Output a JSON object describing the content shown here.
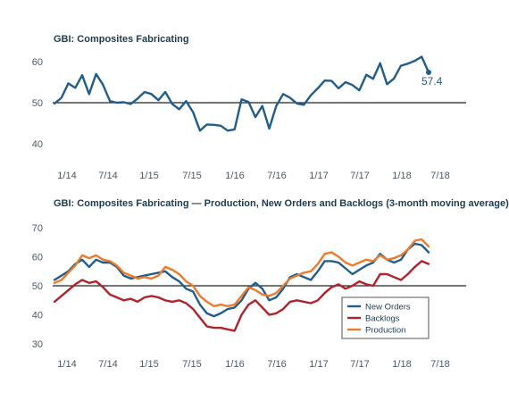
{
  "chart_data": [
    {
      "type": "line",
      "title": "GBI: Composites Fabricating",
      "ylim": [
        38,
        64
      ],
      "yticks": [
        40,
        50,
        60
      ],
      "reference_line": 50,
      "xticklabels": [
        "1/14",
        "7/14",
        "1/15",
        "7/15",
        "1/16",
        "7/16",
        "1/17",
        "7/17",
        "1/18",
        "7/18"
      ],
      "x_start": "1/14",
      "annotation": "57.4",
      "series": [
        {
          "color": "#1f5e8c",
          "values": [
            49.8,
            51.2,
            54.7,
            53.6,
            56.7,
            52.1,
            57.0,
            54.4,
            50.4,
            50.0,
            50.1,
            49.7,
            51.0,
            52.6,
            52.1,
            50.6,
            52.6,
            49.7,
            48.4,
            50.4,
            47.7,
            43.2,
            44.7,
            44.6,
            44.4,
            43.2,
            43.5,
            50.8,
            50.2,
            46.5,
            49.2,
            43.7,
            49.2,
            52.1,
            51.2,
            49.8,
            49.5,
            51.8,
            53.5,
            55.4,
            55.3,
            53.5,
            55.0,
            54.3,
            53.0,
            56.8,
            55.8,
            59.6,
            54.5,
            55.9,
            59.0,
            59.5,
            60.2,
            61.2,
            57.4
          ]
        }
      ]
    },
    {
      "type": "line",
      "title": "GBI: Composites Fabricating — Production, New Orders and Backlogs  (3-month moving average)",
      "ylim": [
        29,
        71
      ],
      "yticks": [
        30,
        40,
        50,
        60,
        70
      ],
      "reference_line": 50,
      "xticklabels": [
        "1/14",
        "7/14",
        "1/15",
        "7/15",
        "1/16",
        "7/16",
        "1/17",
        "7/17",
        "1/18",
        "7/18"
      ],
      "x_start": "1/14",
      "legend_position": "lower-right",
      "series": [
        {
          "name": "New Orders",
          "color": "#1f5e8c",
          "values": [
            52.0,
            53.5,
            55.0,
            57.5,
            59.0,
            56.5,
            59.0,
            58.0,
            58.0,
            56.5,
            53.5,
            52.5,
            53.0,
            53.5,
            54.0,
            54.5,
            55.0,
            53.0,
            51.5,
            49.0,
            48.0,
            43.5,
            40.5,
            39.5,
            40.5,
            42.0,
            42.5,
            45.0,
            49.0,
            51.0,
            49.0,
            45.0,
            46.0,
            49.0,
            53.0,
            54.0,
            53.0,
            52.0,
            55.0,
            58.5,
            58.5,
            58.0,
            56.0,
            54.0,
            55.5,
            57.0,
            58.0,
            61.0,
            59.0,
            58.0,
            59.0,
            62.5,
            64.5,
            64.0,
            61.5
          ]
        },
        {
          "name": "Backlogs",
          "color": "#b0232a",
          "values": [
            44.5,
            46.5,
            48.5,
            50.5,
            52.0,
            51.0,
            51.5,
            49.5,
            47.0,
            46.0,
            45.0,
            45.5,
            44.5,
            46.0,
            46.5,
            46.0,
            45.0,
            44.5,
            45.0,
            44.0,
            42.0,
            39.0,
            36.0,
            35.5,
            35.5,
            35.0,
            34.5,
            40.0,
            43.5,
            45.0,
            42.5,
            40.0,
            40.5,
            42.0,
            44.5,
            45.0,
            44.5,
            44.0,
            45.0,
            47.5,
            49.5,
            50.5,
            49.0,
            50.0,
            51.5,
            50.5,
            50.0,
            54.0,
            54.0,
            53.0,
            52.0,
            54.0,
            56.5,
            58.5,
            57.5
          ]
        },
        {
          "name": "Production",
          "color": "#ee7a2a",
          "values": [
            51.0,
            52.0,
            54.5,
            57.0,
            60.5,
            59.5,
            60.5,
            59.0,
            58.5,
            57.0,
            54.5,
            53.5,
            52.5,
            53.0,
            52.5,
            53.5,
            56.5,
            55.5,
            54.0,
            51.5,
            50.0,
            46.5,
            44.5,
            43.0,
            43.5,
            43.0,
            43.5,
            46.5,
            49.5,
            48.5,
            47.0,
            46.5,
            47.5,
            50.0,
            52.5,
            53.5,
            54.5,
            55.0,
            57.5,
            61.0,
            61.5,
            60.0,
            58.0,
            57.0,
            58.0,
            59.0,
            58.5,
            60.5,
            59.0,
            59.5,
            60.5,
            62.5,
            65.5,
            66.0,
            63.5
          ]
        }
      ]
    }
  ]
}
